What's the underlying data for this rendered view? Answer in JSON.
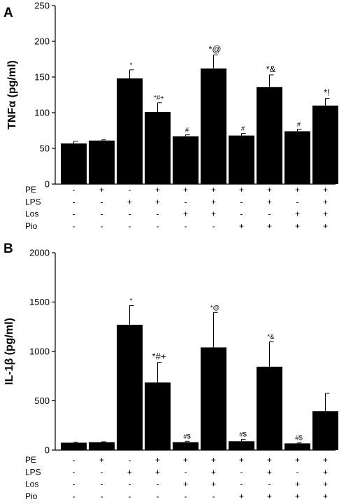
{
  "chart_data": [
    {
      "type": "bar",
      "panel_label": "A",
      "ylabel": "TNFα (pg/ml)",
      "ylim": [
        0,
        250
      ],
      "yticks": [
        0,
        50,
        100,
        150,
        200,
        250
      ],
      "values": [
        57,
        61,
        148,
        101,
        67,
        162,
        68,
        136,
        74,
        110
      ],
      "errors": [
        3,
        1,
        12,
        13,
        2,
        19,
        3,
        17,
        3,
        10
      ],
      "annotations": [
        "",
        "",
        "*",
        "*#+",
        "#",
        "*@",
        "#",
        "*&",
        "#",
        "*!"
      ],
      "treatments": [
        {
          "name": "PE",
          "signs": [
            "-",
            "+",
            "-",
            "+",
            "+",
            "+",
            "+",
            "+",
            "+",
            "+"
          ]
        },
        {
          "name": "LPS",
          "signs": [
            "-",
            "-",
            "+",
            "+",
            "-",
            "+",
            "-",
            "+",
            "-",
            "+"
          ]
        },
        {
          "name": "Los",
          "signs": [
            "-",
            "-",
            "-",
            "-",
            "+",
            "+",
            "-",
            "-",
            "+",
            "+"
          ]
        },
        {
          "name": "Pio",
          "signs": [
            "-",
            "-",
            "-",
            "-",
            "-",
            "-",
            "+",
            "+",
            "+",
            "+"
          ]
        }
      ]
    },
    {
      "type": "bar",
      "panel_label": "B",
      "ylabel": "IL-1β (pg/ml)",
      "ylim": [
        0,
        2000
      ],
      "yticks": [
        0,
        500,
        1000,
        1500,
        2000
      ],
      "values": [
        75,
        80,
        1270,
        685,
        80,
        1040,
        90,
        845,
        68,
        395
      ],
      "errors": [
        5,
        5,
        195,
        205,
        10,
        355,
        20,
        255,
        5,
        180
      ],
      "annotations": [
        "",
        "",
        "*",
        "*#+",
        "#$",
        "*@",
        "#$",
        "*&",
        "#$",
        ""
      ],
      "treatments": [
        {
          "name": "PE",
          "signs": [
            "-",
            "+",
            "-",
            "+",
            "+",
            "+",
            "+",
            "+",
            "+",
            "+"
          ]
        },
        {
          "name": "LPS",
          "signs": [
            "-",
            "-",
            "+",
            "+",
            "-",
            "+",
            "-",
            "+",
            "-",
            "+"
          ]
        },
        {
          "name": "Los",
          "signs": [
            "-",
            "-",
            "-",
            "-",
            "+",
            "+",
            "-",
            "-",
            "+",
            "+"
          ]
        },
        {
          "name": "Pio",
          "signs": [
            "-",
            "-",
            "-",
            "-",
            "-",
            "-",
            "+",
            "+",
            "+",
            "+"
          ]
        }
      ]
    }
  ]
}
